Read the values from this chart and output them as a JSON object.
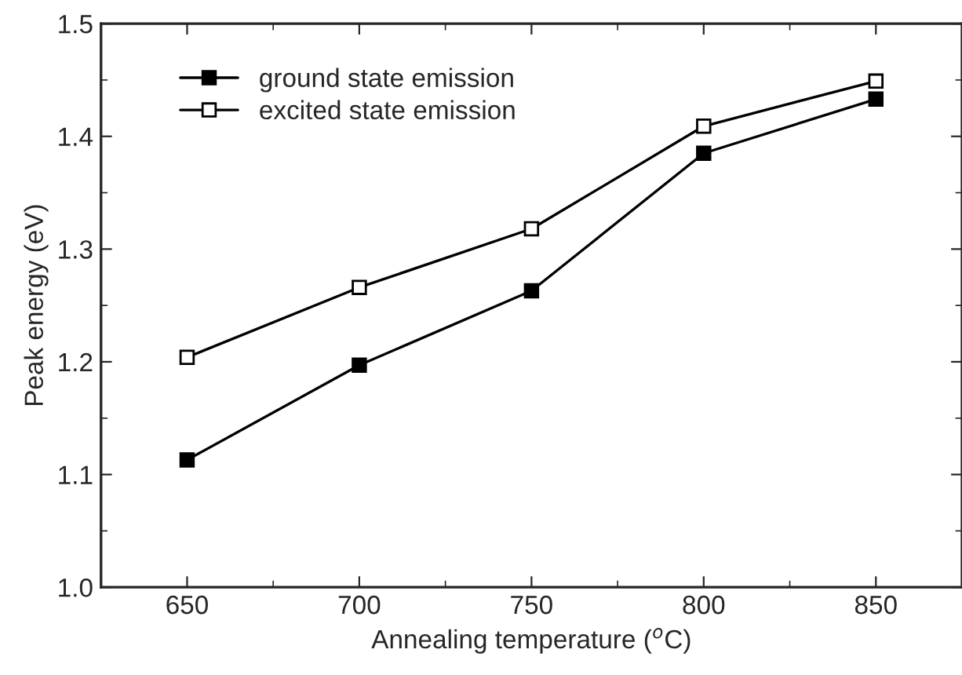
{
  "chart_data": {
    "type": "line",
    "xlabel": "Annealing temperature ($^{o}$C)",
    "ylabel": "Peak energy (eV)",
    "x": [
      650,
      700,
      750,
      800,
      850
    ],
    "series": [
      {
        "name": "ground state emission",
        "color": "#000000",
        "marker": "square",
        "values": [
          1.113,
          1.197,
          1.263,
          1.385,
          1.433
        ]
      },
      {
        "name": "excited state emission",
        "color": "#000000",
        "marker": "square",
        "values": [
          1.204,
          1.266,
          1.318,
          1.409,
          1.449
        ]
      }
    ],
    "xlim": [
      625,
      875
    ],
    "xticks": [
      650,
      700,
      750,
      800,
      850
    ],
    "ylim": [
      1.0,
      1.5
    ],
    "yticks": [
      {
        "value": 1.0,
        "label": "1.0"
      },
      1.1,
      1.2,
      1.3,
      1.4,
      1.5
    ],
    "grid": false,
    "legend": "top left",
    "line_style": "solid"
  }
}
